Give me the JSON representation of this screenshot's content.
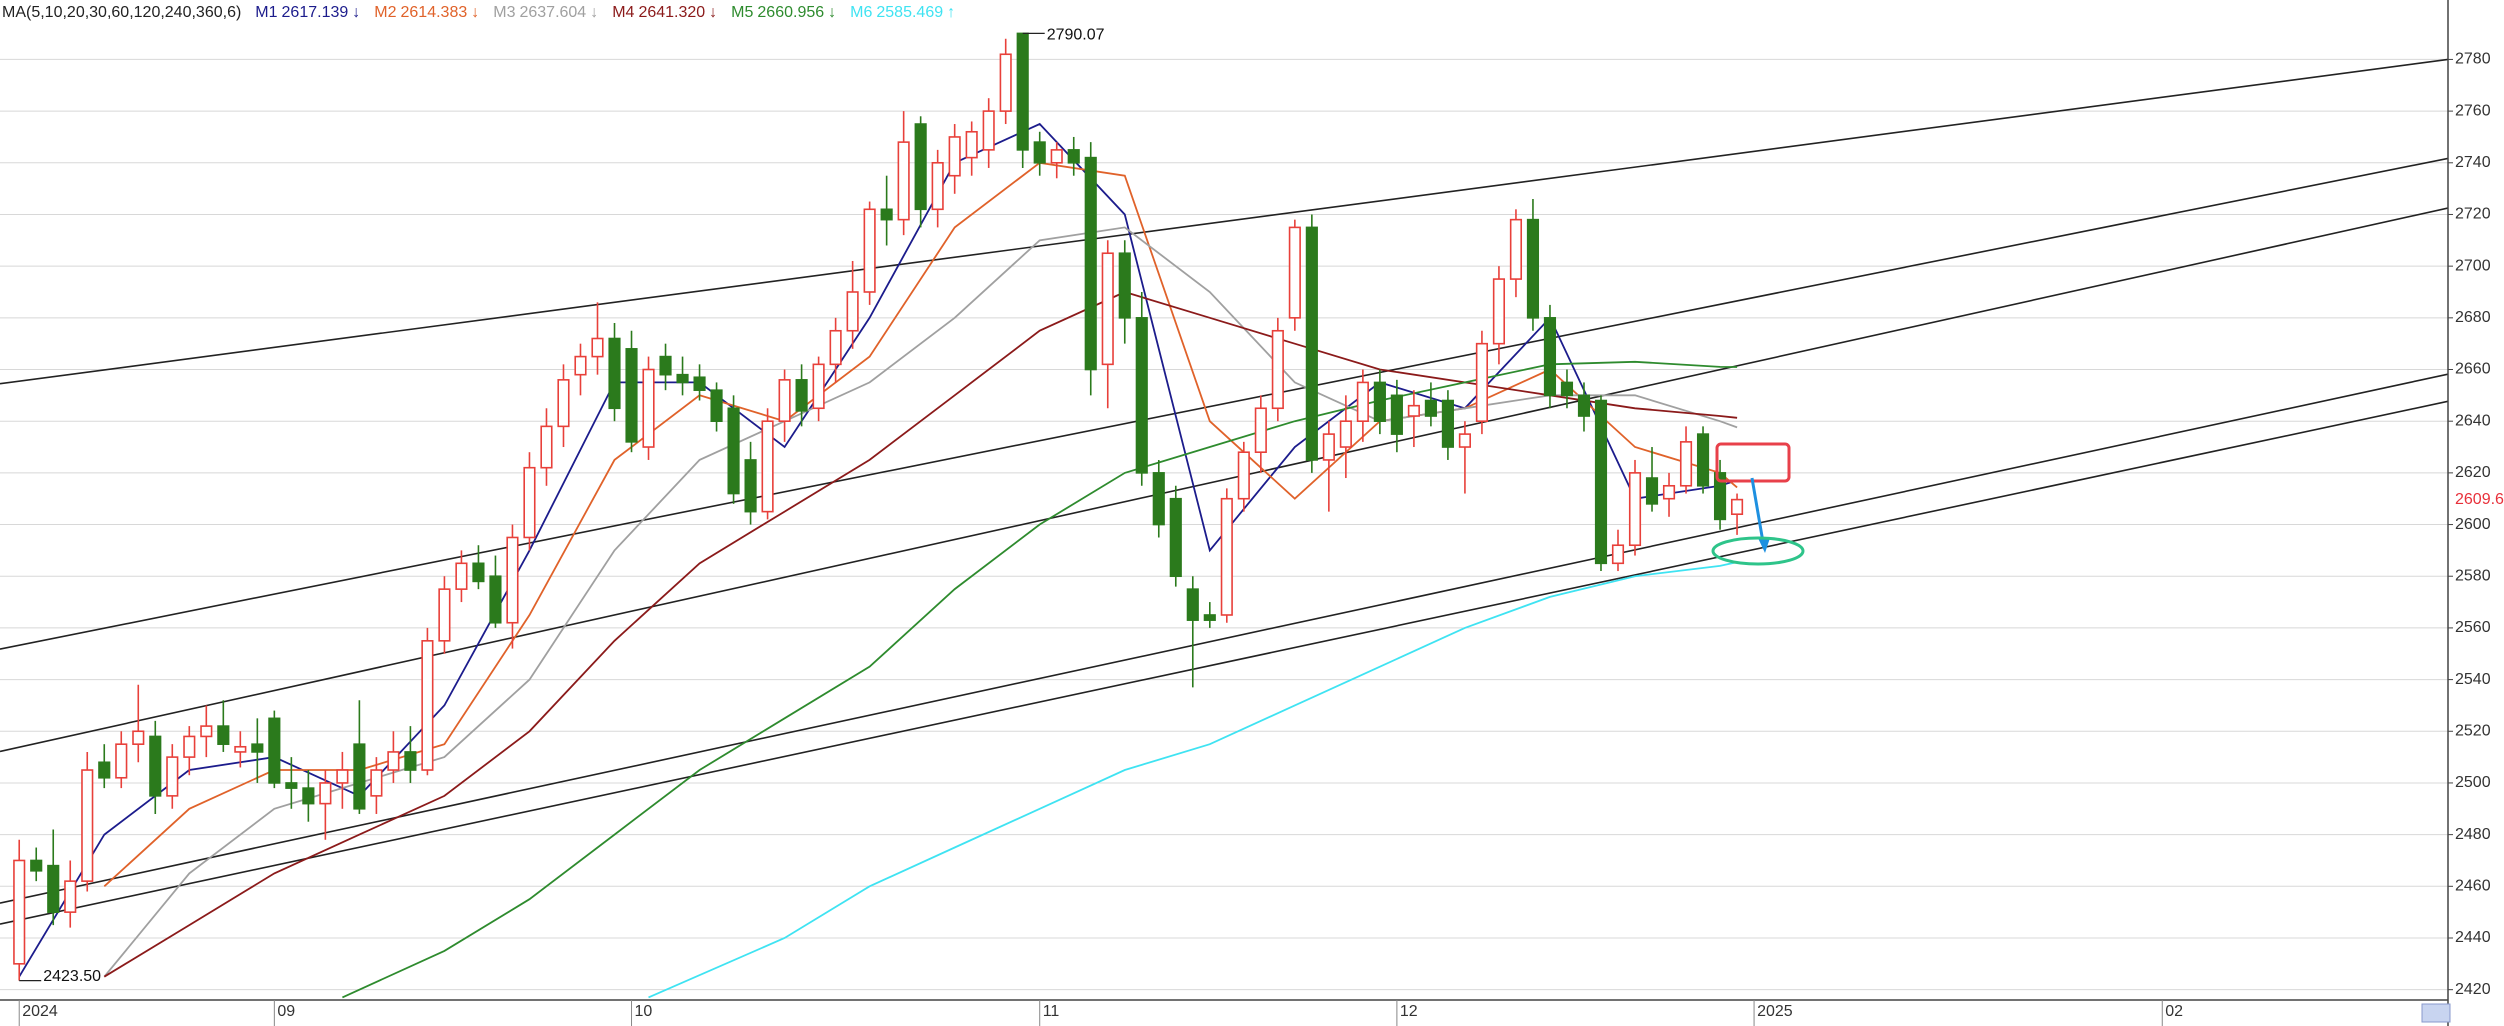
{
  "chart_data": {
    "type": "candlestick",
    "legend_title": "MA(5,10,20,30,60,120,240,360,6)",
    "xlim": [
      -1.13,
      142.8
    ],
    "ylim": [
      2416,
      2803
    ],
    "yticks": [
      2420,
      2440,
      2460,
      2480,
      2500,
      2520,
      2540,
      2560,
      2580,
      2600,
      2620,
      2640,
      2660,
      2680,
      2700,
      2720,
      2740,
      2760,
      2780
    ],
    "xticks": [
      {
        "value": 0,
        "label": "2024"
      },
      {
        "value": 15,
        "label": "09"
      },
      {
        "value": 36,
        "label": "10"
      },
      {
        "value": 60,
        "label": "11"
      },
      {
        "value": 81,
        "label": "12"
      },
      {
        "value": 102,
        "label": "2025"
      },
      {
        "value": 126,
        "label": "02"
      }
    ],
    "grid": true,
    "up_color": "#e8403a",
    "down_color": "#2b7a1c",
    "open": [
      2430,
      2470,
      2468,
      2450,
      2462,
      2508,
      2502,
      2515,
      2518,
      2495,
      2510,
      2518,
      2522,
      2512,
      2515,
      2525,
      2500,
      2498,
      2492,
      2500,
      2515,
      2495,
      2505,
      2512,
      2505,
      2555,
      2575,
      2585,
      2580,
      2562,
      2595,
      2622,
      2638,
      2658,
      2665,
      2672,
      2668,
      2630,
      2665,
      2658,
      2657,
      2652,
      2645,
      2625,
      2605,
      2640,
      2656,
      2645,
      2662,
      2675,
      2690,
      2722,
      2718,
      2755,
      2722,
      2735,
      2742,
      2745,
      2760,
      2790.07,
      2748,
      2740,
      2745,
      2742,
      2662,
      2705,
      2680,
      2620,
      2610,
      2575,
      2565,
      2565,
      2610,
      2628,
      2645,
      2680,
      2715,
      2625,
      2630,
      2640,
      2655,
      2650,
      2642,
      2648,
      2648,
      2630,
      2640,
      2670,
      2695,
      2718,
      2680,
      2655,
      2650,
      2648,
      2585,
      2592,
      2618,
      2610,
      2615,
      2635,
      2620,
      2604
    ],
    "high": [
      2478,
      2475,
      2482,
      2470,
      2512,
      2515,
      2520,
      2538,
      2524,
      2515,
      2522,
      2530,
      2532,
      2520,
      2525,
      2528,
      2510,
      2505,
      2505,
      2512,
      2532,
      2510,
      2520,
      2522,
      2560,
      2580,
      2590,
      2592,
      2588,
      2600,
      2628,
      2645,
      2662,
      2670,
      2686,
      2678,
      2675,
      2665,
      2670,
      2665,
      2662,
      2655,
      2650,
      2632,
      2645,
      2660,
      2662,
      2665,
      2680,
      2702,
      2725,
      2735,
      2760,
      2758,
      2745,
      2755,
      2756,
      2765,
      2788,
      2790.07,
      2752,
      2748,
      2750,
      2748,
      2710,
      2710,
      2690,
      2625,
      2615,
      2580,
      2570,
      2614,
      2632,
      2650,
      2680,
      2718,
      2720,
      2640,
      2650,
      2660,
      2660,
      2656,
      2652,
      2655,
      2652,
      2640,
      2675,
      2700,
      2722,
      2726,
      2685,
      2660,
      2655,
      2650,
      2598,
      2625,
      2630,
      2620,
      2638,
      2638,
      2625,
      2612
    ],
    "low": [
      2423.5,
      2462,
      2445,
      2444,
      2458,
      2498,
      2498,
      2508,
      2488,
      2490,
      2503,
      2510,
      2512,
      2506,
      2500,
      2498,
      2490,
      2485,
      2478,
      2490,
      2488,
      2488,
      2500,
      2500,
      2503,
      2550,
      2570,
      2575,
      2560,
      2552,
      2590,
      2615,
      2630,
      2650,
      2658,
      2640,
      2628,
      2625,
      2652,
      2650,
      2648,
      2636,
      2608,
      2600,
      2602,
      2632,
      2638,
      2640,
      2655,
      2668,
      2685,
      2708,
      2712,
      2715,
      2715,
      2728,
      2735,
      2738,
      2755,
      2738,
      2735,
      2734,
      2735,
      2650,
      2645,
      2670,
      2615,
      2595,
      2576,
      2537,
      2560,
      2562,
      2605,
      2620,
      2640,
      2675,
      2620,
      2605,
      2618,
      2632,
      2635,
      2628,
      2630,
      2638,
      2625,
      2612,
      2635,
      2662,
      2688,
      2675,
      2645,
      2645,
      2636,
      2582,
      2582,
      2588,
      2605,
      2603,
      2612,
      2612,
      2598,
      2596
    ],
    "close": [
      2470,
      2466,
      2450,
      2462,
      2505,
      2502,
      2515,
      2520,
      2495,
      2510,
      2518,
      2522,
      2515,
      2514,
      2512,
      2500,
      2498,
      2492,
      2500,
      2505,
      2490,
      2505,
      2512,
      2505,
      2555,
      2575,
      2585,
      2578,
      2562,
      2595,
      2622,
      2638,
      2656,
      2665,
      2672,
      2645,
      2632,
      2660,
      2658,
      2655,
      2652,
      2640,
      2612,
      2605,
      2640,
      2656,
      2644,
      2662,
      2675,
      2690,
      2722,
      2718,
      2748,
      2722,
      2740,
      2750,
      2752,
      2760,
      2782,
      2745,
      2740,
      2745,
      2740,
      2660,
      2705,
      2680,
      2620,
      2600,
      2580,
      2563,
      2563,
      2610,
      2628,
      2645,
      2675,
      2715,
      2625,
      2635,
      2640,
      2655,
      2640,
      2635,
      2646,
      2642,
      2630,
      2635,
      2670,
      2695,
      2718,
      2680,
      2650,
      2650,
      2642,
      2585,
      2592,
      2620,
      2608,
      2615,
      2632,
      2615,
      2602,
      2609.65
    ],
    "annotations": [
      {
        "label": "2790.07",
        "index": 59,
        "value": 2790.07
      },
      {
        "label": "2423.50",
        "index": 0,
        "value": 2423.5
      }
    ],
    "series": [
      {
        "name": "M1",
        "legend_value": "2617.139",
        "arrow": "↓",
        "color": "#1c1c8c",
        "x": [
          0,
          5,
          10,
          15,
          20,
          25,
          30,
          35,
          40,
          45,
          50,
          55,
          60,
          65,
          70,
          75,
          80,
          85,
          90,
          95,
          100,
          101
        ],
        "values": [
          2425,
          2480,
          2505,
          2510,
          2495,
          2530,
          2590,
          2655,
          2655,
          2630,
          2680,
          2740,
          2755,
          2720,
          2590,
          2630,
          2655,
          2645,
          2680,
          2610,
          2615,
          2617.139
        ]
      },
      {
        "name": "M2",
        "legend_value": "2614.383",
        "arrow": "↓",
        "color": "#e0622a",
        "x": [
          5,
          10,
          15,
          20,
          25,
          30,
          35,
          40,
          45,
          50,
          55,
          60,
          65,
          70,
          75,
          80,
          85,
          90,
          95,
          100,
          101
        ],
        "values": [
          2460,
          2490,
          2505,
          2505,
          2515,
          2565,
          2625,
          2650,
          2640,
          2665,
          2715,
          2740,
          2735,
          2640,
          2610,
          2640,
          2645,
          2660,
          2630,
          2620,
          2614.383
        ]
      },
      {
        "name": "M3",
        "legend_value": "2637.604",
        "arrow": "↓",
        "color": "#a0a0a0",
        "x": [
          5,
          10,
          15,
          20,
          25,
          30,
          35,
          40,
          45,
          50,
          55,
          60,
          65,
          70,
          75,
          80,
          85,
          90,
          95,
          100,
          101
        ],
        "values": [
          2425,
          2465,
          2490,
          2500,
          2510,
          2540,
          2590,
          2625,
          2640,
          2655,
          2680,
          2710,
          2715,
          2690,
          2655,
          2640,
          2645,
          2650,
          2650,
          2640,
          2637.604
        ]
      },
      {
        "name": "M4",
        "legend_value": "2641.320",
        "arrow": "↓",
        "color": "#8b1a1a",
        "x": [
          5,
          10,
          15,
          20,
          25,
          30,
          35,
          40,
          45,
          50,
          55,
          60,
          65,
          70,
          75,
          80,
          85,
          90,
          95,
          100,
          101
        ],
        "values": [
          2425,
          2445,
          2465,
          2480,
          2495,
          2520,
          2555,
          2585,
          2605,
          2625,
          2650,
          2675,
          2690,
          2680,
          2670,
          2660,
          2655,
          2650,
          2645,
          2642,
          2641.32
        ]
      },
      {
        "name": "M5",
        "legend_value": "2660.956",
        "arrow": "↓",
        "color": "#2e8b2e",
        "x": [
          19,
          25,
          30,
          35,
          40,
          45,
          50,
          55,
          60,
          65,
          70,
          75,
          80,
          85,
          90,
          95,
          100,
          101
        ],
        "values": [
          2417,
          2435,
          2455,
          2480,
          2505,
          2525,
          2545,
          2575,
          2600,
          2620,
          2630,
          2640,
          2648,
          2655,
          2662,
          2663,
          2661,
          2660.956
        ]
      },
      {
        "name": "M6",
        "legend_value": "2585.469",
        "arrow": "↑",
        "color": "#3fe3f2",
        "x": [
          37,
          45,
          50,
          55,
          60,
          65,
          70,
          75,
          80,
          85,
          90,
          95,
          100,
          101
        ],
        "values": [
          2417,
          2440,
          2460,
          2475,
          2490,
          2505,
          2515,
          2530,
          2545,
          2560,
          2572,
          2580,
          2584,
          2585.469
        ]
      }
    ],
    "trendlines": [
      {
        "x": [
          -1.13,
          142.8
        ],
        "y": [
          2654.5,
          2780
        ]
      },
      {
        "x": [
          -1.13,
          142.8
        ],
        "y": [
          2551.8,
          2741.7
        ]
      },
      {
        "x": [
          -1.13,
          142.8
        ],
        "y": [
          2512.2,
          2722.5
        ]
      },
      {
        "x": [
          -1.13,
          142.8
        ],
        "y": [
          2453.5,
          2658.2
        ]
      },
      {
        "x": [
          -1.13,
          142.8
        ],
        "y": [
          2445.4,
          2647.7
        ]
      }
    ]
  }
}
